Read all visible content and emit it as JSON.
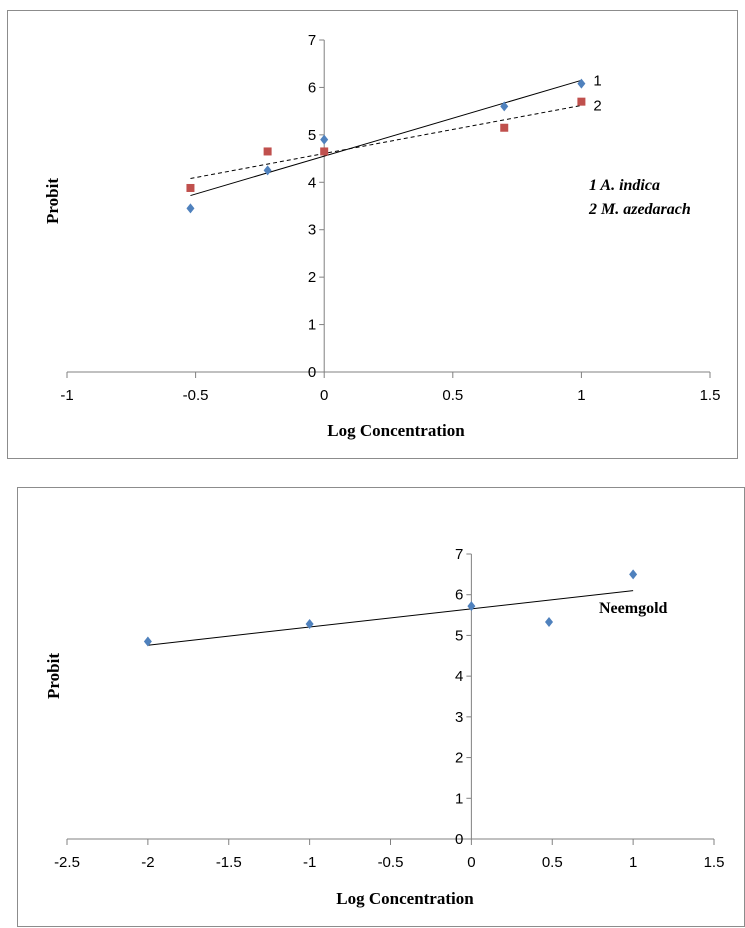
{
  "chart_data": [
    {
      "type": "scatter",
      "xlabel": "Log Concentration",
      "ylabel": "Probit",
      "xlim": [
        -1,
        1.5
      ],
      "ylim": [
        0,
        7
      ],
      "x_ticks": [
        "-1",
        "-0.5",
        "0",
        "0.5",
        "1",
        "1.5"
      ],
      "y_ticks": [
        "0",
        "1",
        "2",
        "3",
        "4",
        "5",
        "6",
        "7"
      ],
      "legend_lines": [
        "1 A. indica",
        "2 M. azedarach"
      ],
      "series": [
        {
          "label": "1",
          "color": "#4f81bd",
          "marker": "diamond",
          "points": [
            [
              -0.52,
              3.45
            ],
            [
              -0.22,
              4.25
            ],
            [
              0,
              4.9
            ],
            [
              0.7,
              5.6
            ],
            [
              1,
              6.08
            ]
          ],
          "trendline": {
            "style": "solid",
            "x": [
              -0.52,
              1
            ],
            "y": [
              3.72,
              6.15
            ]
          }
        },
        {
          "label": "2",
          "color": "#c0504d",
          "marker": "square",
          "points": [
            [
              -0.52,
              3.88
            ],
            [
              -0.22,
              4.65
            ],
            [
              0,
              4.65
            ],
            [
              0.7,
              5.15
            ],
            [
              1,
              5.7
            ]
          ],
          "trendline": {
            "style": "dashed",
            "x": [
              -0.52,
              1
            ],
            "y": [
              4.08,
              5.62
            ]
          }
        }
      ]
    },
    {
      "type": "scatter",
      "xlabel": "Log Concentration",
      "ylabel": "Probit",
      "xlim": [
        -2.5,
        1.5
      ],
      "ylim": [
        0,
        7
      ],
      "x_ticks": [
        "-2.5",
        "-2",
        "-1.5",
        "-1",
        "-0.5",
        "0",
        "0.5",
        "1",
        "1.5"
      ],
      "y_ticks": [
        "0",
        "1",
        "2",
        "3",
        "4",
        "5",
        "6",
        "7"
      ],
      "legend_lines": [
        "Neemgold"
      ],
      "series": [
        {
          "label": "",
          "color": "#4f81bd",
          "marker": "diamond",
          "points": [
            [
              -2,
              4.85
            ],
            [
              -1,
              5.28
            ],
            [
              0,
              5.72
            ],
            [
              0.48,
              5.33
            ],
            [
              1,
              6.5
            ]
          ],
          "trendline": {
            "style": "solid",
            "x": [
              -2,
              1
            ],
            "y": [
              4.76,
              6.1
            ]
          }
        }
      ]
    }
  ]
}
